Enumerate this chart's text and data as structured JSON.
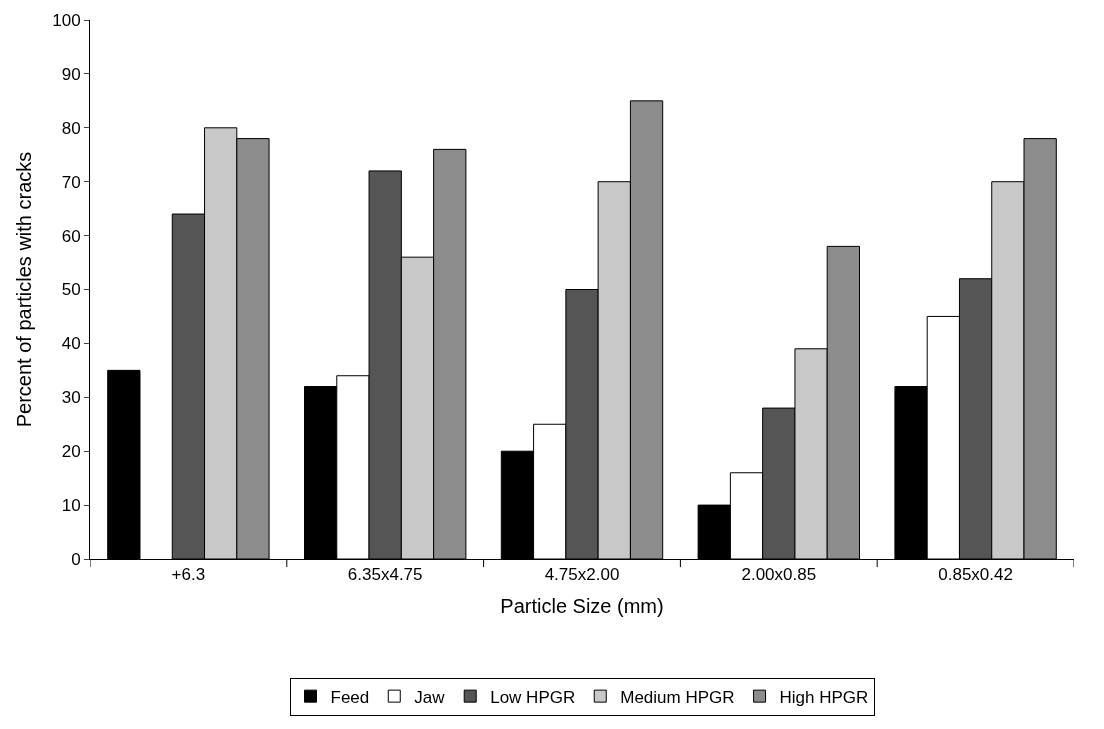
{
  "chart_data": {
    "type": "bar",
    "xlabel": "Particle Size (mm)",
    "ylabel": "Percent of particles with cracks",
    "categories": [
      "+6.3",
      "6.35x4.75",
      "4.75x2.00",
      "2.00x0.85",
      "0.85x0.42"
    ],
    "series": [
      {
        "name": "Feed",
        "color": "#000000",
        "values": [
          35,
          32,
          20,
          10,
          32
        ]
      },
      {
        "name": "Jaw",
        "color": "#ffffff",
        "values": [
          null,
          34,
          25,
          16,
          45
        ]
      },
      {
        "name": "Low HPGR",
        "color": "#555555",
        "values": [
          64,
          72,
          50,
          28,
          52
        ]
      },
      {
        "name": "Medium HPGR",
        "color": "#c8c8c8",
        "values": [
          80,
          56,
          70,
          39,
          70
        ]
      },
      {
        "name": "High HPGR",
        "color": "#8c8c8c",
        "values": [
          78,
          76,
          85,
          58,
          78
        ]
      }
    ],
    "ylim": [
      0,
      100
    ],
    "yticks": [
      0,
      10,
      20,
      30,
      40,
      50,
      60,
      70,
      80,
      90,
      100
    ],
    "legend": "bottom"
  }
}
